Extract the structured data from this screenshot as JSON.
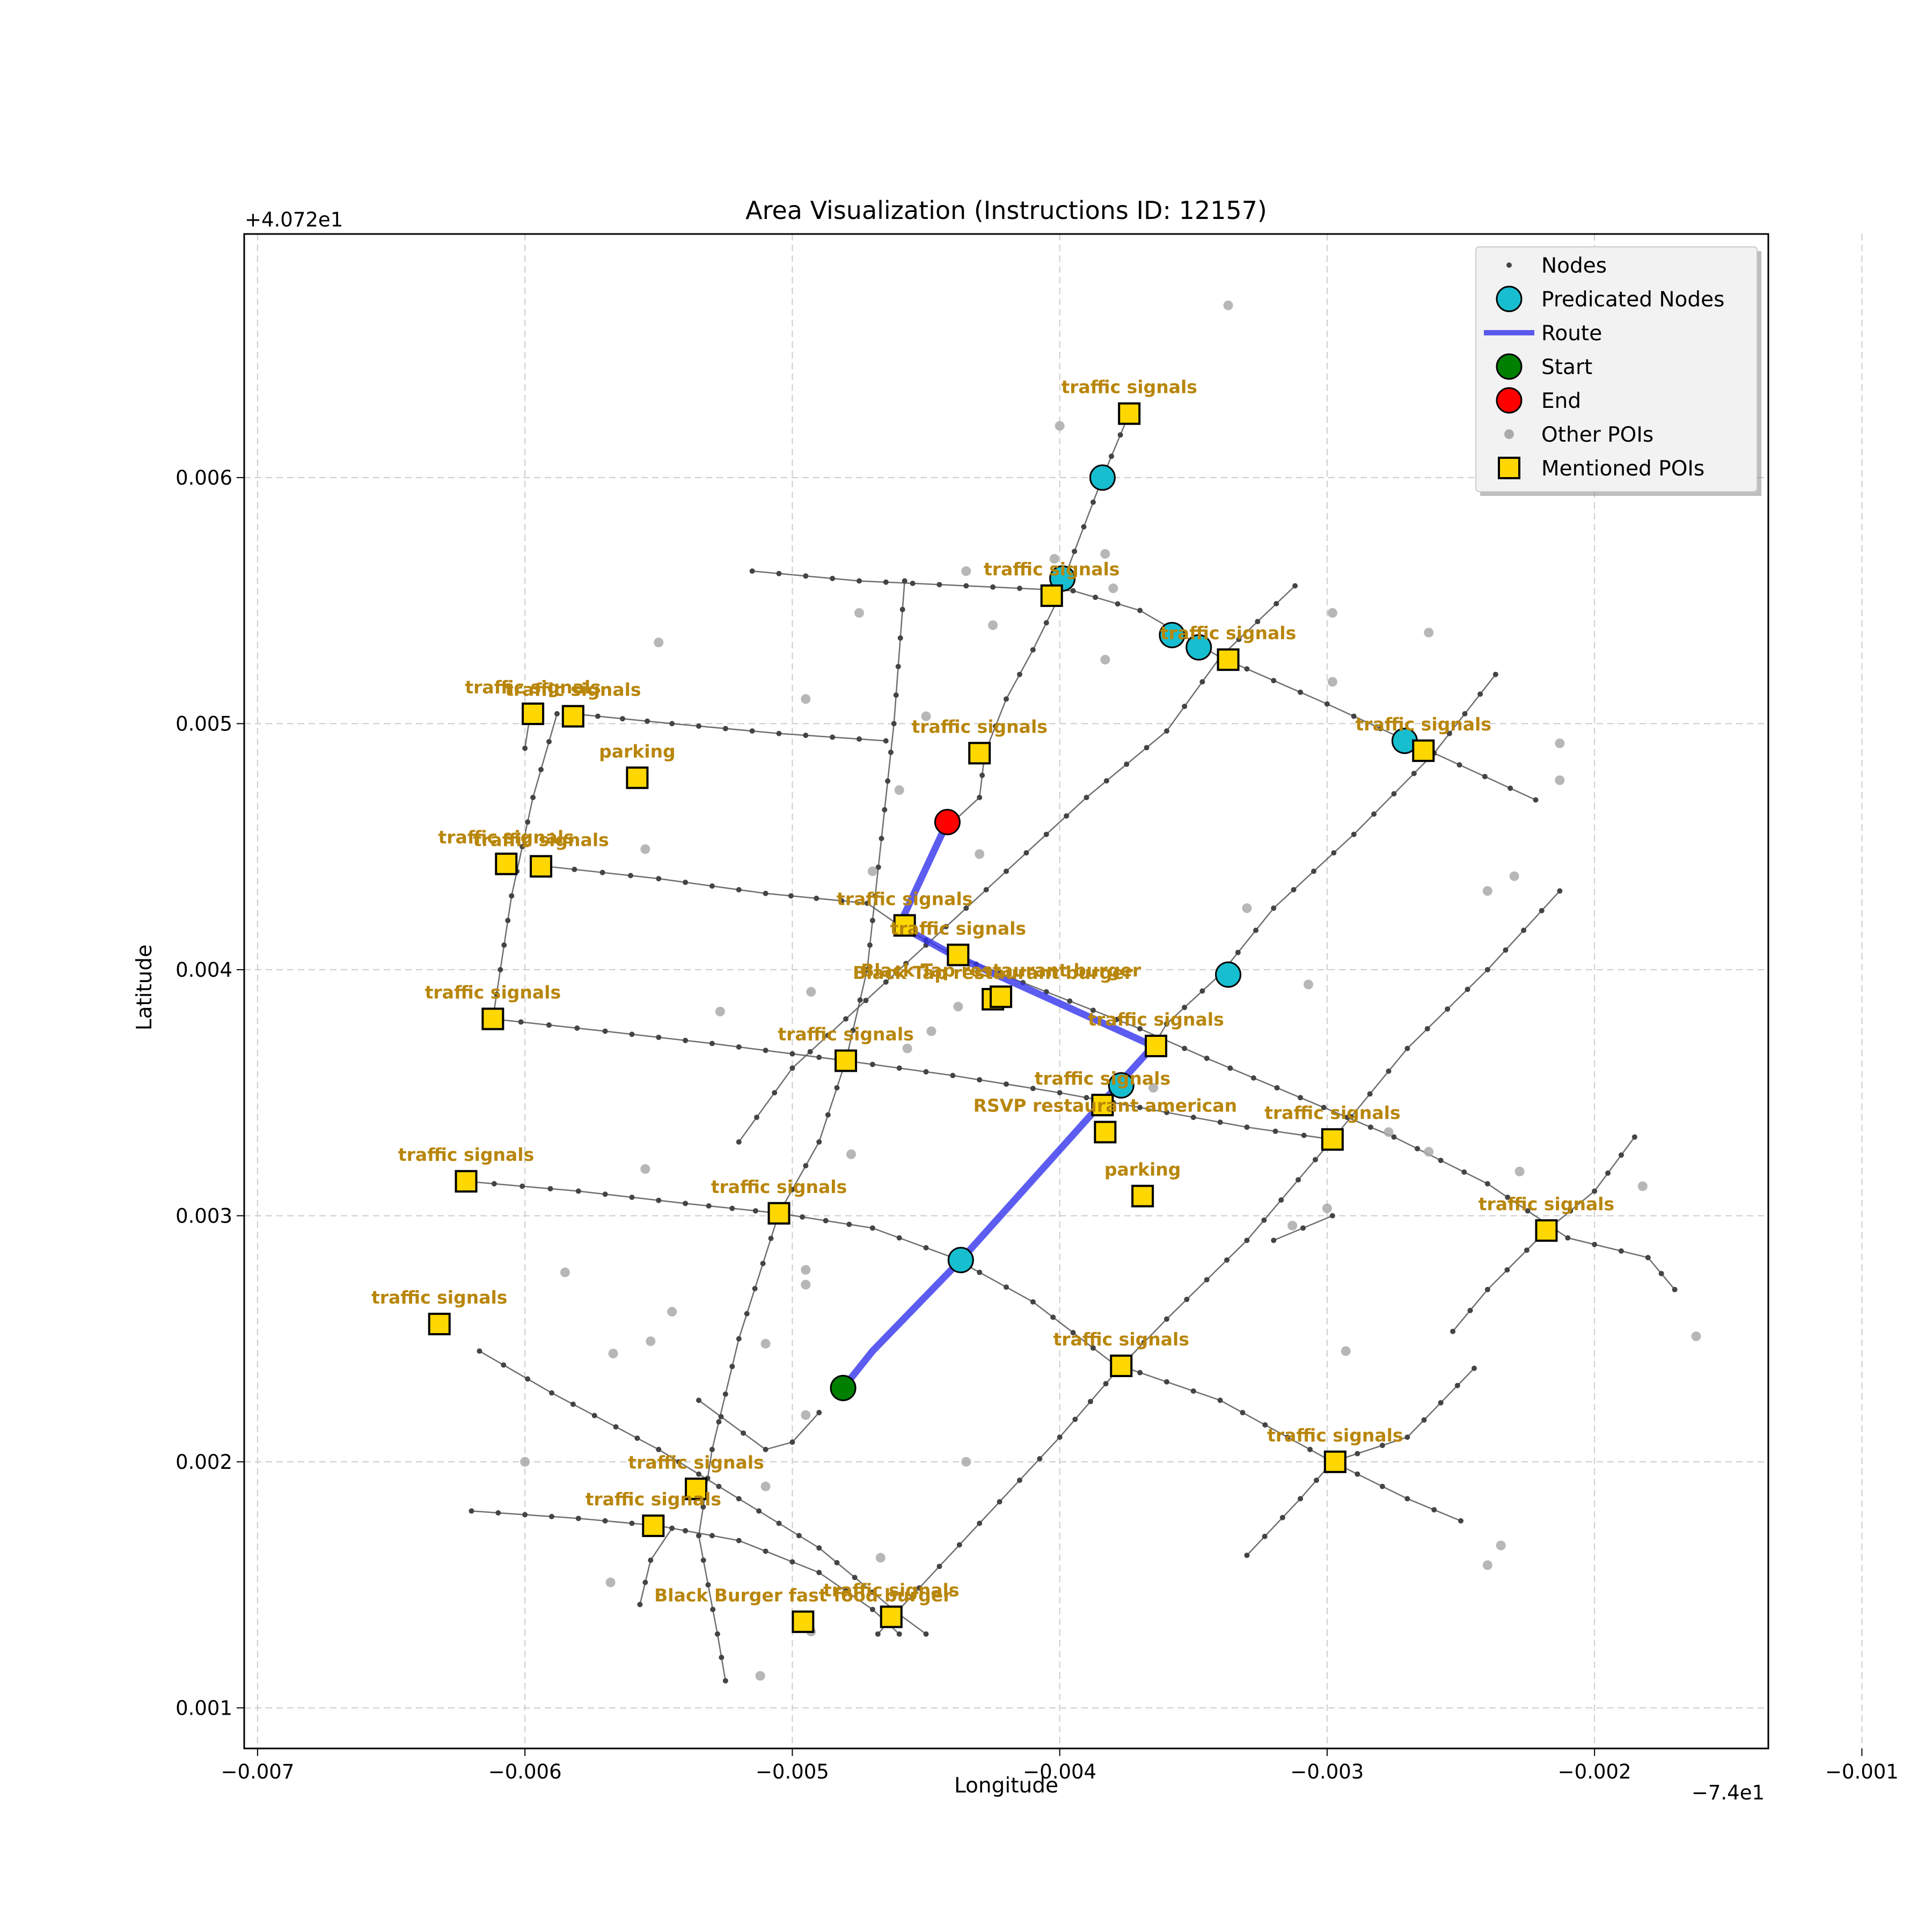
{
  "title": "Area Visualization (Instructions ID: 12157)",
  "xlabel": "Longitude",
  "ylabel": "Latitude",
  "x_offset_label": "−7.4e1",
  "y_offset_label": "+4.072e1",
  "colors": {
    "nodes": "#444444",
    "edges": "#555555",
    "predicated": "#17becf",
    "route": "#3333ee",
    "start": "#008000",
    "end": "#ff0000",
    "other_poi": "#aaaaaa",
    "mentioned_poi": "#ffd700",
    "poi_label": "#b8860b",
    "grid": "#cccccc"
  },
  "legend": {
    "position": "top-right",
    "items": [
      {
        "label": "Nodes",
        "symbol": "small-dot"
      },
      {
        "label": "Predicated Nodes",
        "symbol": "cyan-circle"
      },
      {
        "label": "Route",
        "symbol": "blue-line"
      },
      {
        "label": "Start",
        "symbol": "green-circle"
      },
      {
        "label": "End",
        "symbol": "red-circle"
      },
      {
        "label": "Other POIs",
        "symbol": "grey-dot"
      },
      {
        "label": "Mentioned POIs",
        "symbol": "gold-square"
      }
    ]
  },
  "chart_data": {
    "type": "scatter",
    "title": "Area Visualization (Instructions ID: 12157)",
    "xlabel": "Longitude",
    "ylabel": "Latitude",
    "x_offset": -74,
    "y_offset": 40.72,
    "xlim": [
      -0.00705,
      -0.00135
    ],
    "ylim": [
      0.000835,
      0.00699
    ],
    "grid": true,
    "x_ticks": [
      -0.007,
      -0.006,
      -0.005,
      -0.004,
      -0.003,
      -0.002,
      -0.001
    ],
    "x_tick_labels": [
      "−0.007",
      "−0.006",
      "−0.005",
      "−0.004",
      "−0.003",
      "−0.002",
      "−0.001"
    ],
    "y_ticks": [
      0.001,
      0.002,
      0.003,
      0.004,
      0.005,
      0.006
    ],
    "y_tick_labels": [
      "0.001",
      "0.002",
      "0.003",
      "0.004",
      "0.005",
      "0.006"
    ],
    "streets": [
      [
        [
          -0.00515,
          0.00562
        ],
        [
          -0.00475,
          0.00558
        ],
        [
          -0.00435,
          0.00556
        ],
        [
          -0.00395,
          0.00554
        ],
        [
          -0.0037,
          0.00546
        ],
        [
          -0.0034,
          0.00527
        ],
        [
          -0.003,
          0.00508
        ],
        [
          -0.0026,
          0.00488
        ],
        [
          -0.00222,
          0.00469
        ]
      ],
      [
        [
          -0.00582,
          0.00504
        ],
        [
          -0.00545,
          0.005
        ],
        [
          -0.00505,
          0.00496
        ],
        [
          -0.00465,
          0.00493
        ]
      ],
      [
        [
          -0.00592,
          0.00442
        ],
        [
          -0.0055,
          0.00437
        ],
        [
          -0.0051,
          0.00431
        ],
        [
          -0.00472,
          0.00427
        ],
        [
          -0.0046,
          0.00418
        ],
        [
          -0.0044,
          0.00406
        ],
        [
          -0.00405,
          0.00391
        ],
        [
          -0.0037,
          0.00376
        ],
        [
          -0.00345,
          0.00364
        ],
        [
          -0.0031,
          0.00348
        ],
        [
          -0.00275,
          0.00332
        ],
        [
          -0.0024,
          0.00313
        ],
        [
          -0.0021,
          0.00291
        ],
        [
          -0.0018,
          0.00283
        ],
        [
          -0.0017,
          0.0027
        ]
      ],
      [
        [
          -0.00612,
          0.0038
        ],
        [
          -0.0057,
          0.00375
        ],
        [
          -0.0053,
          0.0037
        ],
        [
          -0.0048,
          0.00363
        ],
        [
          -0.0044,
          0.00357
        ],
        [
          -0.004,
          0.0035
        ],
        [
          -0.0036,
          0.00342
        ],
        [
          -0.0033,
          0.00336
        ],
        [
          -0.00298,
          0.00331
        ]
      ],
      [
        [
          -0.00622,
          0.00314
        ],
        [
          -0.0058,
          0.0031
        ],
        [
          -0.0054,
          0.00305
        ],
        [
          -0.00505,
          0.00301
        ],
        [
          -0.0047,
          0.00295
        ],
        [
          -0.0044,
          0.00283
        ],
        [
          -0.0041,
          0.00265
        ],
        [
          -0.0038,
          0.0024
        ],
        [
          -0.0034,
          0.00225
        ],
        [
          -0.00298,
          0.002
        ],
        [
          -0.0027,
          0.00185
        ],
        [
          -0.0025,
          0.00176
        ]
      ],
      [
        [
          -0.00617,
          0.00245
        ],
        [
          -0.0059,
          0.00228
        ],
        [
          -0.0055,
          0.00205
        ],
        [
          -0.0052,
          0.00185
        ],
        [
          -0.0049,
          0.00165
        ],
        [
          -0.0047,
          0.00147
        ],
        [
          -0.0046,
          0.00138
        ],
        [
          -0.0045,
          0.0013
        ]
      ],
      [
        [
          -0.0062,
          0.0018
        ],
        [
          -0.0058,
          0.00177
        ],
        [
          -0.0055,
          0.00174
        ],
        [
          -0.0052,
          0.00168
        ],
        [
          -0.0049,
          0.00155
        ],
        [
          -0.0047,
          0.0014
        ],
        [
          -0.0046,
          0.0013
        ]
      ],
      [
        [
          -0.00588,
          0.00504
        ],
        [
          -0.00597,
          0.0047
        ],
        [
          -0.00605,
          0.0043
        ],
        [
          -0.00612,
          0.0038
        ]
      ],
      [
        [
          -0.00598,
          0.00504
        ],
        [
          -0.006,
          0.0049
        ]
      ],
      [
        [
          -0.00458,
          0.00558
        ],
        [
          -0.00462,
          0.005
        ],
        [
          -0.00469,
          0.0043
        ],
        [
          -0.00472,
          0.004
        ],
        [
          -0.0048,
          0.00363
        ],
        [
          -0.0049,
          0.0033
        ],
        [
          -0.00505,
          0.00301
        ],
        [
          -0.0052,
          0.0025
        ],
        [
          -0.0053,
          0.00205
        ],
        [
          -0.00535,
          0.0017
        ],
        [
          -0.00528,
          0.0013
        ],
        [
          -0.00525,
          0.00111
        ]
      ],
      [
        [
          -0.00545,
          0.00173
        ],
        [
          -0.00553,
          0.0016
        ],
        [
          -0.00557,
          0.00142
        ]
      ],
      [
        [
          -0.00374,
          0.00626
        ],
        [
          -0.00384,
          0.006
        ],
        [
          -0.00398,
          0.0056
        ],
        [
          -0.004,
          0.00552
        ],
        [
          -0.0041,
          0.0053
        ],
        [
          -0.0042,
          0.0051
        ],
        [
          -0.00428,
          0.00488
        ],
        [
          -0.0043,
          0.0047
        ],
        [
          -0.0044,
          0.0046
        ]
      ],
      [
        [
          -0.00312,
          0.00556
        ],
        [
          -0.0034,
          0.00527
        ],
        [
          -0.0036,
          0.00497
        ],
        [
          -0.0039,
          0.0047
        ],
        [
          -0.0042,
          0.0044
        ],
        [
          -0.0045,
          0.0041
        ],
        [
          -0.0048,
          0.0038
        ],
        [
          -0.005,
          0.0036
        ],
        [
          -0.0052,
          0.0033
        ]
      ],
      [
        [
          -0.00237,
          0.0052
        ],
        [
          -0.0026,
          0.00488
        ],
        [
          -0.0029,
          0.00455
        ],
        [
          -0.0032,
          0.00425
        ],
        [
          -0.0034,
          0.00398
        ],
        [
          -0.0036,
          0.00378
        ],
        [
          -0.00365,
          0.00369
        ]
      ],
      [
        [
          -0.00213,
          0.00432
        ],
        [
          -0.0024,
          0.004
        ],
        [
          -0.0027,
          0.00368
        ],
        [
          -0.00298,
          0.00331
        ],
        [
          -0.0033,
          0.0029
        ],
        [
          -0.0036,
          0.00258
        ],
        [
          -0.00377,
          0.00239
        ],
        [
          -0.004,
          0.0021
        ],
        [
          -0.0043,
          0.00175
        ],
        [
          -0.0046,
          0.0014
        ],
        [
          -0.00468,
          0.0013
        ]
      ],
      [
        [
          -0.00185,
          0.00332
        ],
        [
          -0.002,
          0.0031
        ],
        [
          -0.00218,
          0.00294
        ],
        [
          -0.0024,
          0.0027
        ],
        [
          -0.00253,
          0.00253
        ]
      ],
      [
        [
          -0.00245,
          0.00238
        ],
        [
          -0.0027,
          0.0021
        ],
        [
          -0.00298,
          0.002
        ],
        [
          -0.0031,
          0.00185
        ],
        [
          -0.0033,
          0.00162
        ]
      ],
      [
        [
          -0.00298,
          0.003
        ],
        [
          -0.0032,
          0.0029
        ]
      ],
      [
        [
          -0.00535,
          0.00225
        ],
        [
          -0.0051,
          0.00205
        ],
        [
          -0.005,
          0.00208
        ],
        [
          -0.0049,
          0.0022
        ]
      ]
    ],
    "route": [
      [
        -0.00481,
        0.0023
      ],
      [
        -0.0047,
        0.00245
      ],
      [
        -0.00437,
        0.00282
      ],
      [
        -0.00385,
        0.00345
      ],
      [
        -0.00365,
        0.00369
      ],
      [
        -0.0044,
        0.00406
      ],
      [
        -0.0046,
        0.00418
      ],
      [
        -0.00442,
        0.0046
      ]
    ],
    "predicated_nodes": [
      [
        -0.00384,
        0.006
      ],
      [
        -0.00399,
        0.00559
      ],
      [
        -0.00358,
        0.00536
      ],
      [
        -0.00348,
        0.00531
      ],
      [
        -0.00271,
        0.00493
      ],
      [
        -0.00337,
        0.00398
      ],
      [
        -0.00377,
        0.00353
      ],
      [
        -0.00437,
        0.00282
      ]
    ],
    "start": [
      -0.00481,
      0.0023
    ],
    "end": [
      -0.00442,
      0.0046
    ],
    "other_pois": [
      [
        -0.00337,
        0.0067
      ],
      [
        -0.004,
        0.00621
      ],
      [
        -0.00402,
        0.00567
      ],
      [
        -0.00383,
        0.00569
      ],
      [
        -0.0038,
        0.00555
      ],
      [
        -0.00435,
        0.00562
      ],
      [
        -0.00425,
        0.0054
      ],
      [
        -0.00475,
        0.00545
      ],
      [
        -0.0055,
        0.00533
      ],
      [
        -0.00383,
        0.00526
      ],
      [
        -0.00298,
        0.00545
      ],
      [
        -0.00298,
        0.00517
      ],
      [
        -0.00262,
        0.00537
      ],
      [
        -0.00213,
        0.00492
      ],
      [
        -0.00213,
        0.00477
      ],
      [
        -0.00495,
        0.0051
      ],
      [
        -0.0046,
        0.00473
      ],
      [
        -0.00555,
        0.00449
      ],
      [
        -0.0045,
        0.00503
      ],
      [
        -0.0043,
        0.00447
      ],
      [
        -0.0047,
        0.0044
      ],
      [
        -0.0033,
        0.00425
      ],
      [
        -0.0024,
        0.00432
      ],
      [
        -0.0023,
        0.00438
      ],
      [
        -0.00307,
        0.00394
      ],
      [
        -0.00527,
        0.00383
      ],
      [
        -0.00493,
        0.00391
      ],
      [
        -0.00438,
        0.00385
      ],
      [
        -0.00448,
        0.00375
      ],
      [
        -0.00457,
        0.00368
      ],
      [
        -0.00365,
        0.00352
      ],
      [
        -0.00277,
        0.00334
      ],
      [
        -0.00262,
        0.00326
      ],
      [
        -0.00228,
        0.00318
      ],
      [
        -0.00182,
        0.00312
      ],
      [
        -0.00555,
        0.00319
      ],
      [
        -0.00478,
        0.00325
      ],
      [
        -0.003,
        0.00303
      ],
      [
        -0.00313,
        0.00296
      ],
      [
        -0.00162,
        0.00251
      ],
      [
        -0.00585,
        0.00277
      ],
      [
        -0.00495,
        0.00278
      ],
      [
        -0.00495,
        0.00272
      ],
      [
        -0.00545,
        0.00261
      ],
      [
        -0.00553,
        0.00249
      ],
      [
        -0.00567,
        0.00244
      ],
      [
        -0.0051,
        0.00248
      ],
      [
        -0.00293,
        0.00245
      ],
      [
        -0.00495,
        0.00219
      ],
      [
        -0.00435,
        0.002
      ],
      [
        -0.006,
        0.002
      ],
      [
        -0.0051,
        0.0019
      ],
      [
        -0.00235,
        0.00166
      ],
      [
        -0.0024,
        0.00158
      ],
      [
        -0.00568,
        0.00151
      ],
      [
        -0.00467,
        0.00161
      ],
      [
        -0.00493,
        0.00131
      ],
      [
        -0.00512,
        0.00113
      ]
    ],
    "mentioned_pois": [
      {
        "x": -0.00374,
        "y": 0.00626,
        "label": "traffic signals"
      },
      {
        "x": -0.00403,
        "y": 0.00552,
        "label": "traffic signals"
      },
      {
        "x": -0.00337,
        "y": 0.00526,
        "label": "traffic signals"
      },
      {
        "x": -0.00264,
        "y": 0.00489,
        "label": "traffic signals"
      },
      {
        "x": -0.00597,
        "y": 0.00504,
        "label": "traffic signals"
      },
      {
        "x": -0.00582,
        "y": 0.00503,
        "label": "traffic signals"
      },
      {
        "x": -0.0043,
        "y": 0.00488,
        "label": "traffic signals"
      },
      {
        "x": -0.00558,
        "y": 0.00478,
        "label": "parking"
      },
      {
        "x": -0.00607,
        "y": 0.00443,
        "label": "traffic signals"
      },
      {
        "x": -0.00594,
        "y": 0.00442,
        "label": "traffic signals"
      },
      {
        "x": -0.00458,
        "y": 0.00418,
        "label": "traffic signals"
      },
      {
        "x": -0.00438,
        "y": 0.00406,
        "label": "traffic signals"
      },
      {
        "x": -0.00425,
        "y": 0.00388,
        "label": "Black Tap restaurant burger"
      },
      {
        "x": -0.00422,
        "y": 0.00389,
        "label": "Black Tap restaurant burger"
      },
      {
        "x": -0.00612,
        "y": 0.0038,
        "label": "traffic signals"
      },
      {
        "x": -0.00364,
        "y": 0.00369,
        "label": "traffic signals"
      },
      {
        "x": -0.0048,
        "y": 0.00363,
        "label": "traffic signals"
      },
      {
        "x": -0.00384,
        "y": 0.00345,
        "label": "traffic signals"
      },
      {
        "x": -0.00383,
        "y": 0.00334,
        "label": "RSVP restaurant american"
      },
      {
        "x": -0.00298,
        "y": 0.00331,
        "label": "traffic signals"
      },
      {
        "x": -0.00622,
        "y": 0.00314,
        "label": "traffic signals"
      },
      {
        "x": -0.00505,
        "y": 0.00301,
        "label": "traffic signals"
      },
      {
        "x": -0.00369,
        "y": 0.00308,
        "label": "parking"
      },
      {
        "x": -0.00218,
        "y": 0.00294,
        "label": "traffic signals"
      },
      {
        "x": -0.00632,
        "y": 0.00256,
        "label": "traffic signals"
      },
      {
        "x": -0.00377,
        "y": 0.00239,
        "label": "traffic signals"
      },
      {
        "x": -0.00297,
        "y": 0.002,
        "label": "traffic signals"
      },
      {
        "x": -0.00536,
        "y": 0.00189,
        "label": "traffic signals"
      },
      {
        "x": -0.00552,
        "y": 0.00174,
        "label": "traffic signals"
      },
      {
        "x": -0.00463,
        "y": 0.00137,
        "label": "traffic signals"
      },
      {
        "x": -0.00496,
        "y": 0.00135,
        "label": "Black Burger fast food burger"
      }
    ]
  }
}
